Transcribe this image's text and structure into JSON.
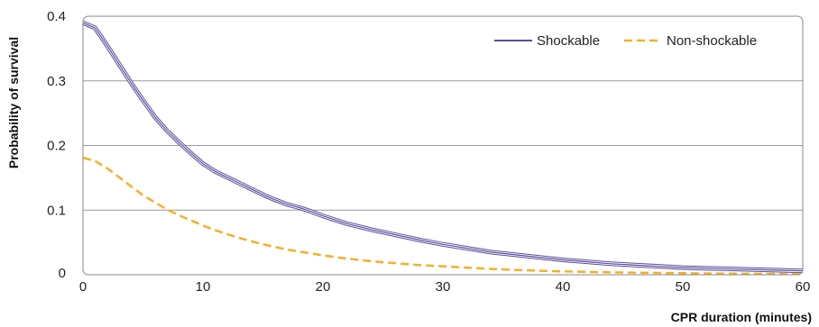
{
  "chart_data": {
    "type": "line",
    "xlabel": "CPR duration (minutes)",
    "ylabel": "Probability of survival",
    "xlim": [
      0,
      60
    ],
    "ylim": [
      0,
      0.4
    ],
    "x_ticks": [
      "0",
      "10",
      "20",
      "30",
      "40",
      "50",
      "60"
    ],
    "y_ticks": [
      "0",
      "0.1",
      "0.2",
      "0.3",
      "0.4"
    ],
    "grid": "horizontal",
    "legend_position": "top-right",
    "series": [
      {
        "name": "Shockable",
        "color": "#5b4e9e",
        "style": "solid-triple",
        "x": [
          0,
          1,
          2,
          3,
          4,
          5,
          6,
          7,
          8,
          9,
          10,
          11,
          12,
          13,
          14,
          15,
          16,
          17,
          18,
          19,
          20,
          22,
          24,
          26,
          28,
          30,
          32,
          34,
          36,
          38,
          40,
          42,
          44,
          46,
          48,
          50,
          52,
          54,
          56,
          58,
          60
        ],
        "values": [
          0.39,
          0.382,
          0.355,
          0.326,
          0.297,
          0.27,
          0.244,
          0.223,
          0.205,
          0.188,
          0.172,
          0.16,
          0.151,
          0.142,
          0.133,
          0.124,
          0.116,
          0.109,
          0.104,
          0.098,
          0.091,
          0.079,
          0.07,
          0.062,
          0.054,
          0.047,
          0.041,
          0.035,
          0.031,
          0.027,
          0.023,
          0.02,
          0.017,
          0.015,
          0.013,
          0.011,
          0.01,
          0.009,
          0.008,
          0.007,
          0.006
        ]
      },
      {
        "name": "Non-shockable",
        "color": "#f5b026",
        "style": "dashed",
        "x": [
          0,
          1,
          2,
          3,
          4,
          5,
          6,
          7,
          8,
          9,
          10,
          11,
          12,
          13,
          14,
          15,
          16,
          17,
          18,
          19,
          20,
          22,
          24,
          26,
          28,
          30,
          32,
          34,
          36,
          38,
          40,
          42,
          44,
          46,
          48,
          50,
          52,
          54,
          56,
          58,
          60
        ],
        "values": [
          0.181,
          0.176,
          0.165,
          0.151,
          0.137,
          0.123,
          0.112,
          0.101,
          0.092,
          0.084,
          0.076,
          0.069,
          0.063,
          0.057,
          0.052,
          0.047,
          0.043,
          0.039,
          0.036,
          0.033,
          0.03,
          0.025,
          0.021,
          0.018,
          0.015,
          0.013,
          0.011,
          0.009,
          0.0075,
          0.0062,
          0.0052,
          0.0044,
          0.0037,
          0.0032,
          0.0028,
          0.0024,
          0.002,
          0.0017,
          0.0015,
          0.0013,
          0.0011
        ]
      }
    ]
  }
}
